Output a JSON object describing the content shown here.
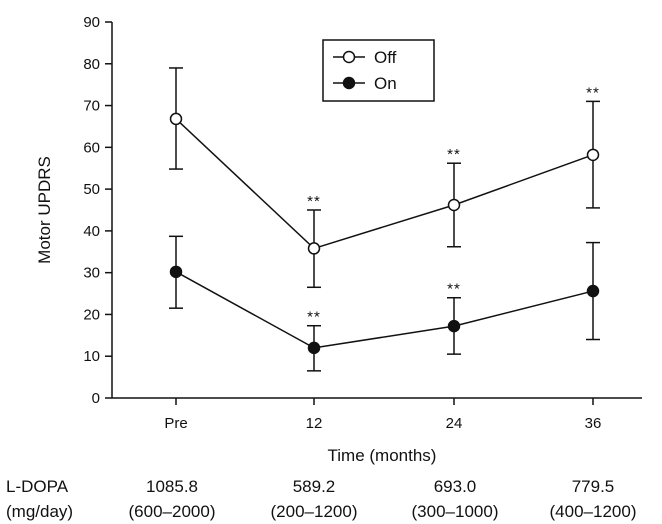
{
  "chart_data": {
    "type": "line",
    "xlabel": "Time (months)",
    "ylabel": "Motor UPDRS",
    "ylim": [
      0,
      90
    ],
    "yticks": [
      0,
      10,
      20,
      30,
      40,
      50,
      60,
      70,
      80,
      90
    ],
    "categories": [
      "Pre",
      "12",
      "24",
      "36"
    ],
    "legend_position": "top-center",
    "grid": false,
    "series": [
      {
        "name": "Off",
        "marker": "open-circle",
        "values": [
          66.8,
          35.8,
          46.2,
          58.2
        ],
        "error_low": [
          54.8,
          26.5,
          36.2,
          45.5
        ],
        "error_high": [
          79.0,
          45.0,
          56.2,
          71.0
        ],
        "significance": [
          "",
          "**",
          "**",
          "**"
        ]
      },
      {
        "name": "On",
        "marker": "filled-circle",
        "values": [
          30.2,
          12.0,
          17.2,
          25.6
        ],
        "error_low": [
          21.5,
          6.5,
          10.5,
          14.0
        ],
        "error_high": [
          38.7,
          17.3,
          24.0,
          37.2
        ],
        "significance": [
          "",
          "**",
          "**",
          ""
        ]
      }
    ]
  },
  "ldopa": {
    "label_line1": "L-DOPA",
    "label_line2": "(mg/day)",
    "values": [
      {
        "mean": "1085.8",
        "range": "(600–2000)"
      },
      {
        "mean": "589.2",
        "range": "(200–1200)"
      },
      {
        "mean": "693.0",
        "range": "(300–1000)"
      },
      {
        "mean": "779.5",
        "range": "(400–1200)"
      }
    ]
  }
}
